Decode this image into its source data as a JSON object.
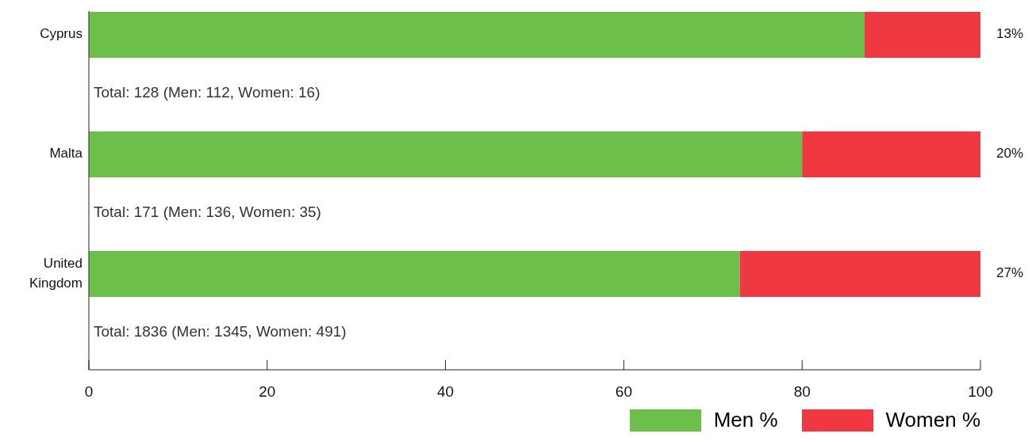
{
  "chart_data": {
    "type": "bar",
    "orientation": "horizontal",
    "stacked": true,
    "categories": [
      "Cyprus",
      "Malta",
      "United Kingdom"
    ],
    "series": [
      {
        "name": "Men %",
        "color": "#6dbf4b",
        "values": [
          87,
          80,
          73
        ]
      },
      {
        "name": "Women %",
        "color": "#ef3842",
        "values": [
          13,
          20,
          27
        ],
        "value_labels": [
          "13%",
          "20%",
          "27%"
        ]
      }
    ],
    "xlim": [
      0,
      100
    ],
    "xticks": [
      0,
      20,
      40,
      60,
      80,
      100
    ],
    "grid": false,
    "legend": "bottom right",
    "annotations": [
      "Total: 128 (Men: 112, Women: 16)",
      "Total: 171 (Men: 136, Women: 35)",
      "Total: 1836 (Men: 1345, Women: 491)"
    ]
  }
}
